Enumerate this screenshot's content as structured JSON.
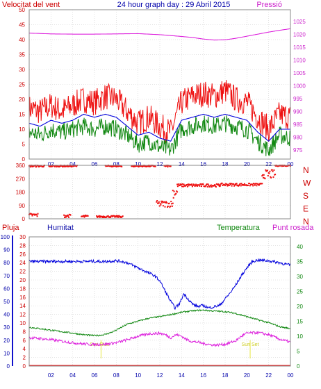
{
  "header": {
    "left_label": "Velocitat del vent",
    "center_label": "24 hour graph day : 29 Abril 2015",
    "right_label": "Pressió"
  },
  "colors": {
    "red": "#ee1111",
    "green": "#118811",
    "blue": "#0000dd",
    "magenta": "#dd22dd",
    "navy": "#1111aa",
    "axis_red": "#cc0000",
    "sun_yellow": "#e8e840",
    "grid": "#c8c8c8"
  },
  "chart_data": [
    {
      "type": "line",
      "name": "wind-pressure",
      "title": "24 hour graph day : 29 Abril 2015",
      "ylabel_left": "Velocitat del vent",
      "ylabel_right": "Pressió",
      "ylim_left": [
        0,
        50
      ],
      "ylim_right": [
        975,
        1030
      ],
      "yticks_left": [
        0,
        5,
        10,
        15,
        20,
        25,
        30,
        35,
        40,
        45,
        50
      ],
      "yticks_right": [
        975,
        980,
        985,
        990,
        995,
        1000,
        1005,
        1010,
        1015,
        1020,
        1025
      ],
      "xlim": [
        0,
        24
      ],
      "xticks": [
        "02",
        "04",
        "06",
        "08",
        "10",
        "12",
        "14",
        "16",
        "18",
        "20",
        "22",
        "00"
      ],
      "grid": true,
      "series": [
        {
          "axis": "left",
          "color": "#ee1111",
          "style": "noisy",
          "x": [
            0,
            1,
            2,
            3,
            4,
            5,
            6,
            7,
            8,
            9,
            10,
            11,
            12,
            13,
            14,
            15,
            16,
            17,
            18,
            19,
            20,
            21,
            22,
            23,
            24
          ],
          "y": [
            17,
            16,
            18,
            16,
            18,
            20,
            19,
            21,
            20,
            16,
            12,
            14,
            11,
            9,
            19,
            21,
            22,
            21,
            23,
            20,
            19,
            14,
            10,
            15,
            14
          ]
        },
        {
          "axis": "left",
          "color": "#0000dd",
          "style": "smooth",
          "x": [
            0,
            1,
            2,
            3,
            4,
            5,
            6,
            7,
            8,
            9,
            10,
            11,
            12,
            13,
            14,
            15,
            16,
            17,
            18,
            19,
            20,
            21,
            22,
            23,
            24
          ],
          "y": [
            12,
            11,
            13,
            12,
            13,
            15,
            14,
            15,
            14,
            11,
            8,
            9,
            7,
            6,
            13,
            14,
            15,
            14,
            15,
            14,
            13,
            9,
            6,
            10,
            10
          ]
        },
        {
          "axis": "left",
          "color": "#118811",
          "style": "noisy",
          "x": [
            0,
            1,
            2,
            3,
            4,
            5,
            6,
            7,
            8,
            9,
            10,
            11,
            12,
            13,
            14,
            15,
            16,
            17,
            18,
            19,
            20,
            21,
            22,
            23,
            24
          ],
          "y": [
            9,
            8,
            10,
            9,
            10,
            11,
            10,
            11,
            10,
            8,
            5,
            6,
            4,
            3,
            10,
            11,
            12,
            11,
            12,
            11,
            10,
            6,
            3,
            8,
            7
          ]
        },
        {
          "axis": "right",
          "color": "#dd22dd",
          "style": "smooth",
          "name": "Pressió",
          "x": [
            0,
            2,
            4,
            6,
            8,
            10,
            12,
            14,
            15,
            16,
            17,
            18,
            19,
            20,
            21,
            22,
            23,
            24
          ],
          "y": [
            1020.5,
            1020.2,
            1020.1,
            1020.1,
            1020.2,
            1020.3,
            1019.9,
            1019.2,
            1018.8,
            1018.2,
            1017.8,
            1017.9,
            1018.5,
            1019.3,
            1020.1,
            1020.9,
            1021.6,
            1022.2
          ]
        }
      ]
    },
    {
      "type": "scatter",
      "name": "wind-direction",
      "right_labels": [
        "N",
        "W",
        "S",
        "E",
        "N"
      ],
      "yticks": [
        0,
        90,
        180,
        270,
        360
      ],
      "ylim": [
        0,
        360
      ],
      "xlim": [
        0,
        24
      ],
      "grid": true,
      "color": "#ee1111",
      "segments": [
        {
          "x_from": 0.0,
          "x_to": 1.4,
          "y": 355,
          "jitter": 6
        },
        {
          "x_from": 0.0,
          "x_to": 0.8,
          "y": 25,
          "jitter": 12
        },
        {
          "x_from": 1.8,
          "x_to": 4.4,
          "y": 355,
          "jitter": 5
        },
        {
          "x_from": 3.2,
          "x_to": 3.8,
          "y": 20,
          "jitter": 10
        },
        {
          "x_from": 4.8,
          "x_to": 5.4,
          "y": 15,
          "jitter": 10
        },
        {
          "x_from": 6.2,
          "x_to": 8.6,
          "y": 15,
          "jitter": 6
        },
        {
          "x_from": 7.0,
          "x_to": 8.5,
          "y": 355,
          "jitter": 5
        },
        {
          "x_from": 9.4,
          "x_to": 11.6,
          "y": 355,
          "jitter": 5
        },
        {
          "x_from": 12.4,
          "x_to": 13.0,
          "y": 355,
          "jitter": 6
        },
        {
          "x_from": 11.7,
          "x_to": 13.2,
          "y": 100,
          "jitter": 22
        },
        {
          "x_from": 13.2,
          "x_to": 13.6,
          "y": 180,
          "jitter": 40
        },
        {
          "x_from": 13.6,
          "x_to": 17.5,
          "y": 225,
          "jitter": 10
        },
        {
          "x_from": 17.5,
          "x_to": 21.4,
          "y": 230,
          "jitter": 9
        },
        {
          "x_from": 21.4,
          "x_to": 22.6,
          "y": 300,
          "jitter": 30
        },
        {
          "x_from": 22.6,
          "x_to": 24.0,
          "y": 358,
          "jitter": 4
        }
      ]
    },
    {
      "type": "line",
      "name": "humidity-temp-dewpoint",
      "legend": [
        "Pluja",
        "Humitat",
        "Temperatura",
        "Punt rosada"
      ],
      "axes": {
        "humidity_ticks": [
          0,
          10,
          20,
          30,
          40,
          50,
          60,
          70,
          80,
          90,
          100
        ],
        "pluja_ticks": [
          0,
          2,
          4,
          6,
          8,
          10,
          12,
          14,
          16,
          18,
          20,
          22,
          24,
          26,
          28,
          30
        ],
        "temp_ticks": [
          0,
          5,
          10,
          15,
          20,
          25,
          30,
          35,
          40
        ],
        "pluja_lim": [
          0,
          30
        ],
        "temp_lim": [
          0,
          40
        ]
      },
      "xlim": [
        0,
        24
      ],
      "xticks": [
        "02",
        "04",
        "06",
        "08",
        "10",
        "12",
        "14",
        "16",
        "18",
        "20",
        "22",
        "00"
      ],
      "sun_rise": {
        "label": "Sun Rise",
        "x": 6.6
      },
      "sun_set": {
        "label": "Sun Set",
        "x": 20.3
      },
      "grid": true,
      "series": [
        {
          "name": "Humitat",
          "axis": "humidity",
          "color": "#0000dd",
          "style": "noisy",
          "x": [
            0,
            1,
            2,
            3,
            4,
            5,
            6,
            7,
            8,
            8.5,
            9,
            9.5,
            10,
            10.5,
            11,
            11.5,
            12,
            12.5,
            13,
            13.4,
            13.8,
            14.2,
            14.6,
            15,
            15.5,
            16,
            16.5,
            17,
            17.5,
            18,
            18.5,
            19,
            19.5,
            20,
            20.5,
            21,
            22,
            23,
            23.5,
            24
          ],
          "y": [
            81,
            81,
            81,
            81,
            81,
            81,
            81,
            81,
            81.5,
            81,
            80,
            78,
            76,
            74,
            72,
            70,
            66,
            58,
            50,
            45,
            48,
            56,
            52,
            48,
            46,
            47,
            45,
            46,
            47,
            52,
            57,
            63,
            70,
            76,
            81,
            82,
            81.5,
            80,
            79,
            78
          ]
        },
        {
          "name": "Temperatura",
          "axis": "temp",
          "color": "#118811",
          "style": "noisy",
          "x": [
            0,
            1,
            2,
            3,
            4,
            5,
            5.5,
            6,
            6.5,
            7,
            7.5,
            8,
            8.5,
            9,
            10,
            11,
            12,
            13,
            14,
            15,
            16,
            17,
            18,
            19,
            20,
            21,
            22,
            23,
            24
          ],
          "y": [
            13,
            12.5,
            12,
            11.5,
            11,
            10.5,
            10.3,
            10.2,
            10.3,
            10.6,
            11.2,
            12,
            13,
            14,
            15,
            16,
            16.5,
            17.2,
            18,
            18.5,
            18.7,
            18.4,
            18.2,
            17.6,
            16.5,
            15.5,
            14.5,
            13.2,
            12.5
          ]
        },
        {
          "name": "Punt rosada",
          "axis": "temp",
          "color": "#dd22dd",
          "style": "noisy",
          "x": [
            0,
            1,
            2,
            3,
            4,
            5,
            6,
            7,
            8,
            9,
            10,
            11,
            12,
            12.5,
            13,
            13.5,
            14,
            14.5,
            15,
            15.5,
            16,
            16.5,
            17,
            18,
            19,
            19.5,
            20,
            21,
            22,
            23,
            24
          ],
          "y": [
            9.5,
            9.2,
            8.8,
            8.3,
            7.8,
            7.4,
            7.2,
            7.3,
            7.8,
            8.8,
            10,
            10.8,
            11,
            10.5,
            9.5,
            10.5,
            10,
            8.8,
            8.2,
            8,
            7.5,
            7.3,
            7,
            7.3,
            8.5,
            10,
            11,
            11.2,
            10.5,
            9,
            8
          ]
        },
        {
          "name": "Pluja",
          "axis": "pluja",
          "color": "#ee1111",
          "style": "flat",
          "x": [
            0,
            24
          ],
          "y": [
            0,
            0
          ]
        }
      ]
    }
  ]
}
